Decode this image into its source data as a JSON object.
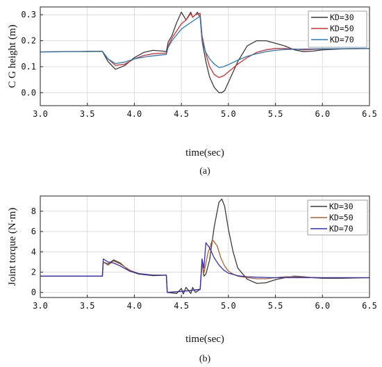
{
  "chart_data": [
    {
      "type": "line",
      "caption": "(a)",
      "xlabel": "time(sec)",
      "ylabel": "C G height (m)",
      "xlim": [
        3.0,
        6.5
      ],
      "ylim": [
        -0.05,
        0.33
      ],
      "xticks": [
        "3.0",
        "3.5",
        "4.0",
        "4.5",
        "5.0",
        "5.5",
        "6.0",
        "6.5"
      ],
      "yticks": [
        "0.0",
        "0.1",
        "0.2",
        "0.3"
      ],
      "grid": true,
      "legend": "top-right",
      "series": [
        {
          "name": "KD=30",
          "color": "#3a3a3a",
          "x": [
            3.0,
            3.66,
            3.72,
            3.8,
            3.9,
            4.0,
            4.1,
            4.2,
            4.3,
            4.34,
            4.36,
            4.4,
            4.45,
            4.5,
            4.55,
            4.6,
            4.62,
            4.65,
            4.67,
            4.7,
            4.72,
            4.76,
            4.8,
            4.85,
            4.9,
            4.93,
            4.96,
            5.0,
            5.1,
            5.2,
            5.3,
            5.4,
            5.5,
            5.6,
            5.7,
            5.8,
            5.9,
            6.0,
            6.2,
            6.4,
            6.5
          ],
          "y": [
            0.157,
            0.159,
            0.12,
            0.09,
            0.105,
            0.135,
            0.155,
            0.163,
            0.16,
            0.158,
            0.195,
            0.22,
            0.27,
            0.31,
            0.28,
            0.31,
            0.29,
            0.3,
            0.31,
            0.29,
            0.2,
            0.12,
            0.06,
            0.02,
            0.0,
            0.0,
            0.008,
            0.04,
            0.12,
            0.18,
            0.2,
            0.2,
            0.19,
            0.18,
            0.165,
            0.158,
            0.16,
            0.165,
            0.168,
            0.17,
            0.17
          ]
        },
        {
          "name": "KD=50",
          "color": "#dd2a2a",
          "x": [
            3.0,
            3.66,
            3.72,
            3.8,
            3.9,
            4.0,
            4.1,
            4.2,
            4.3,
            4.34,
            4.36,
            4.4,
            4.5,
            4.55,
            4.6,
            4.62,
            4.65,
            4.7,
            4.72,
            4.76,
            4.8,
            4.85,
            4.9,
            4.95,
            5.0,
            5.1,
            5.2,
            5.3,
            5.4,
            5.5,
            5.6,
            5.7,
            5.8,
            6.0,
            6.5
          ],
          "y": [
            0.157,
            0.159,
            0.13,
            0.105,
            0.11,
            0.13,
            0.143,
            0.15,
            0.152,
            0.152,
            0.18,
            0.21,
            0.265,
            0.28,
            0.305,
            0.29,
            0.3,
            0.305,
            0.22,
            0.15,
            0.1,
            0.07,
            0.058,
            0.065,
            0.08,
            0.11,
            0.135,
            0.155,
            0.165,
            0.17,
            0.17,
            0.168,
            0.165,
            0.168,
            0.17
          ]
        },
        {
          "name": "KD=70",
          "color": "#1f7ec2",
          "x": [
            3.0,
            3.66,
            3.72,
            3.8,
            3.9,
            4.0,
            4.1,
            4.2,
            4.3,
            4.34,
            4.36,
            4.4,
            4.5,
            4.6,
            4.7,
            4.72,
            4.76,
            4.8,
            4.85,
            4.9,
            4.95,
            5.0,
            5.1,
            5.2,
            5.3,
            5.4,
            5.5,
            5.6,
            5.8,
            6.0,
            6.5
          ],
          "y": [
            0.157,
            0.159,
            0.13,
            0.112,
            0.118,
            0.13,
            0.137,
            0.142,
            0.146,
            0.147,
            0.175,
            0.2,
            0.245,
            0.27,
            0.295,
            0.2,
            0.155,
            0.13,
            0.11,
            0.097,
            0.1,
            0.108,
            0.125,
            0.14,
            0.15,
            0.158,
            0.163,
            0.166,
            0.168,
            0.169,
            0.17
          ]
        }
      ]
    },
    {
      "type": "line",
      "caption": "(b)",
      "xlabel": "time(sec)",
      "ylabel": "Joint torque (N·m)",
      "xlim": [
        3.0,
        6.5
      ],
      "ylim": [
        -0.5,
        9.5
      ],
      "xticks": [
        "3.0",
        "3.5",
        "4.0",
        "4.5",
        "5.0",
        "5.5",
        "6.0",
        "6.5"
      ],
      "yticks": [
        "0",
        "2",
        "4",
        "6",
        "8"
      ],
      "grid": true,
      "legend": "top-right",
      "series": [
        {
          "name": "KD=30",
          "color": "#3a3a3a",
          "x": [
            3.0,
            3.66,
            3.67,
            3.72,
            3.78,
            3.85,
            3.95,
            4.05,
            4.2,
            4.34,
            4.35,
            4.45,
            4.5,
            4.52,
            4.55,
            4.6,
            4.62,
            4.65,
            4.7,
            4.72,
            4.74,
            4.76,
            4.8,
            4.85,
            4.9,
            4.93,
            4.96,
            5.0,
            5.05,
            5.1,
            5.2,
            5.3,
            5.4,
            5.5,
            5.6,
            5.7,
            5.8,
            5.9,
            6.0,
            6.2,
            6.5
          ],
          "y": [
            1.6,
            1.6,
            3.0,
            2.8,
            3.2,
            2.9,
            2.1,
            1.8,
            1.65,
            1.7,
            0.0,
            -0.1,
            0.4,
            -0.15,
            0.5,
            -0.1,
            0.5,
            0.0,
            0.3,
            3.0,
            1.6,
            1.8,
            3.2,
            6.5,
            8.9,
            9.2,
            8.5,
            6.2,
            4.0,
            2.4,
            1.3,
            0.9,
            0.95,
            1.25,
            1.45,
            1.6,
            1.55,
            1.45,
            1.4,
            1.4,
            1.45
          ]
        },
        {
          "name": "KD=50",
          "color": "#b25f2a",
          "x": [
            3.0,
            3.66,
            3.67,
            3.72,
            3.78,
            3.85,
            3.95,
            4.05,
            4.2,
            4.34,
            4.35,
            4.5,
            4.6,
            4.7,
            4.72,
            4.74,
            4.78,
            4.83,
            4.88,
            4.92,
            4.96,
            5.0,
            5.05,
            5.1,
            5.2,
            5.3,
            5.4,
            5.5,
            5.6,
            5.7,
            5.8,
            6.0,
            6.5
          ],
          "y": [
            1.6,
            1.6,
            3.0,
            2.7,
            3.1,
            2.8,
            2.2,
            1.85,
            1.7,
            1.7,
            0.0,
            0.1,
            0.2,
            0.3,
            3.1,
            1.9,
            3.8,
            5.2,
            4.6,
            3.4,
            2.6,
            2.1,
            1.8,
            1.6,
            1.45,
            1.35,
            1.35,
            1.45,
            1.55,
            1.55,
            1.5,
            1.45,
            1.45
          ]
        },
        {
          "name": "KD=70",
          "color": "#2f2fbf",
          "x": [
            3.0,
            3.66,
            3.67,
            3.72,
            3.78,
            3.85,
            3.95,
            4.05,
            4.2,
            4.34,
            4.35,
            4.5,
            4.6,
            4.7,
            4.72,
            4.74,
            4.76,
            4.8,
            4.85,
            4.9,
            4.95,
            5.0,
            5.1,
            5.2,
            5.3,
            5.5,
            6.0,
            6.5
          ],
          "y": [
            1.6,
            1.6,
            3.3,
            3.0,
            2.9,
            2.6,
            2.1,
            1.85,
            1.7,
            1.7,
            0.0,
            0.1,
            0.2,
            0.3,
            3.3,
            2.4,
            4.9,
            4.4,
            3.4,
            2.7,
            2.2,
            1.9,
            1.65,
            1.55,
            1.5,
            1.45,
            1.45,
            1.45
          ]
        }
      ]
    }
  ]
}
